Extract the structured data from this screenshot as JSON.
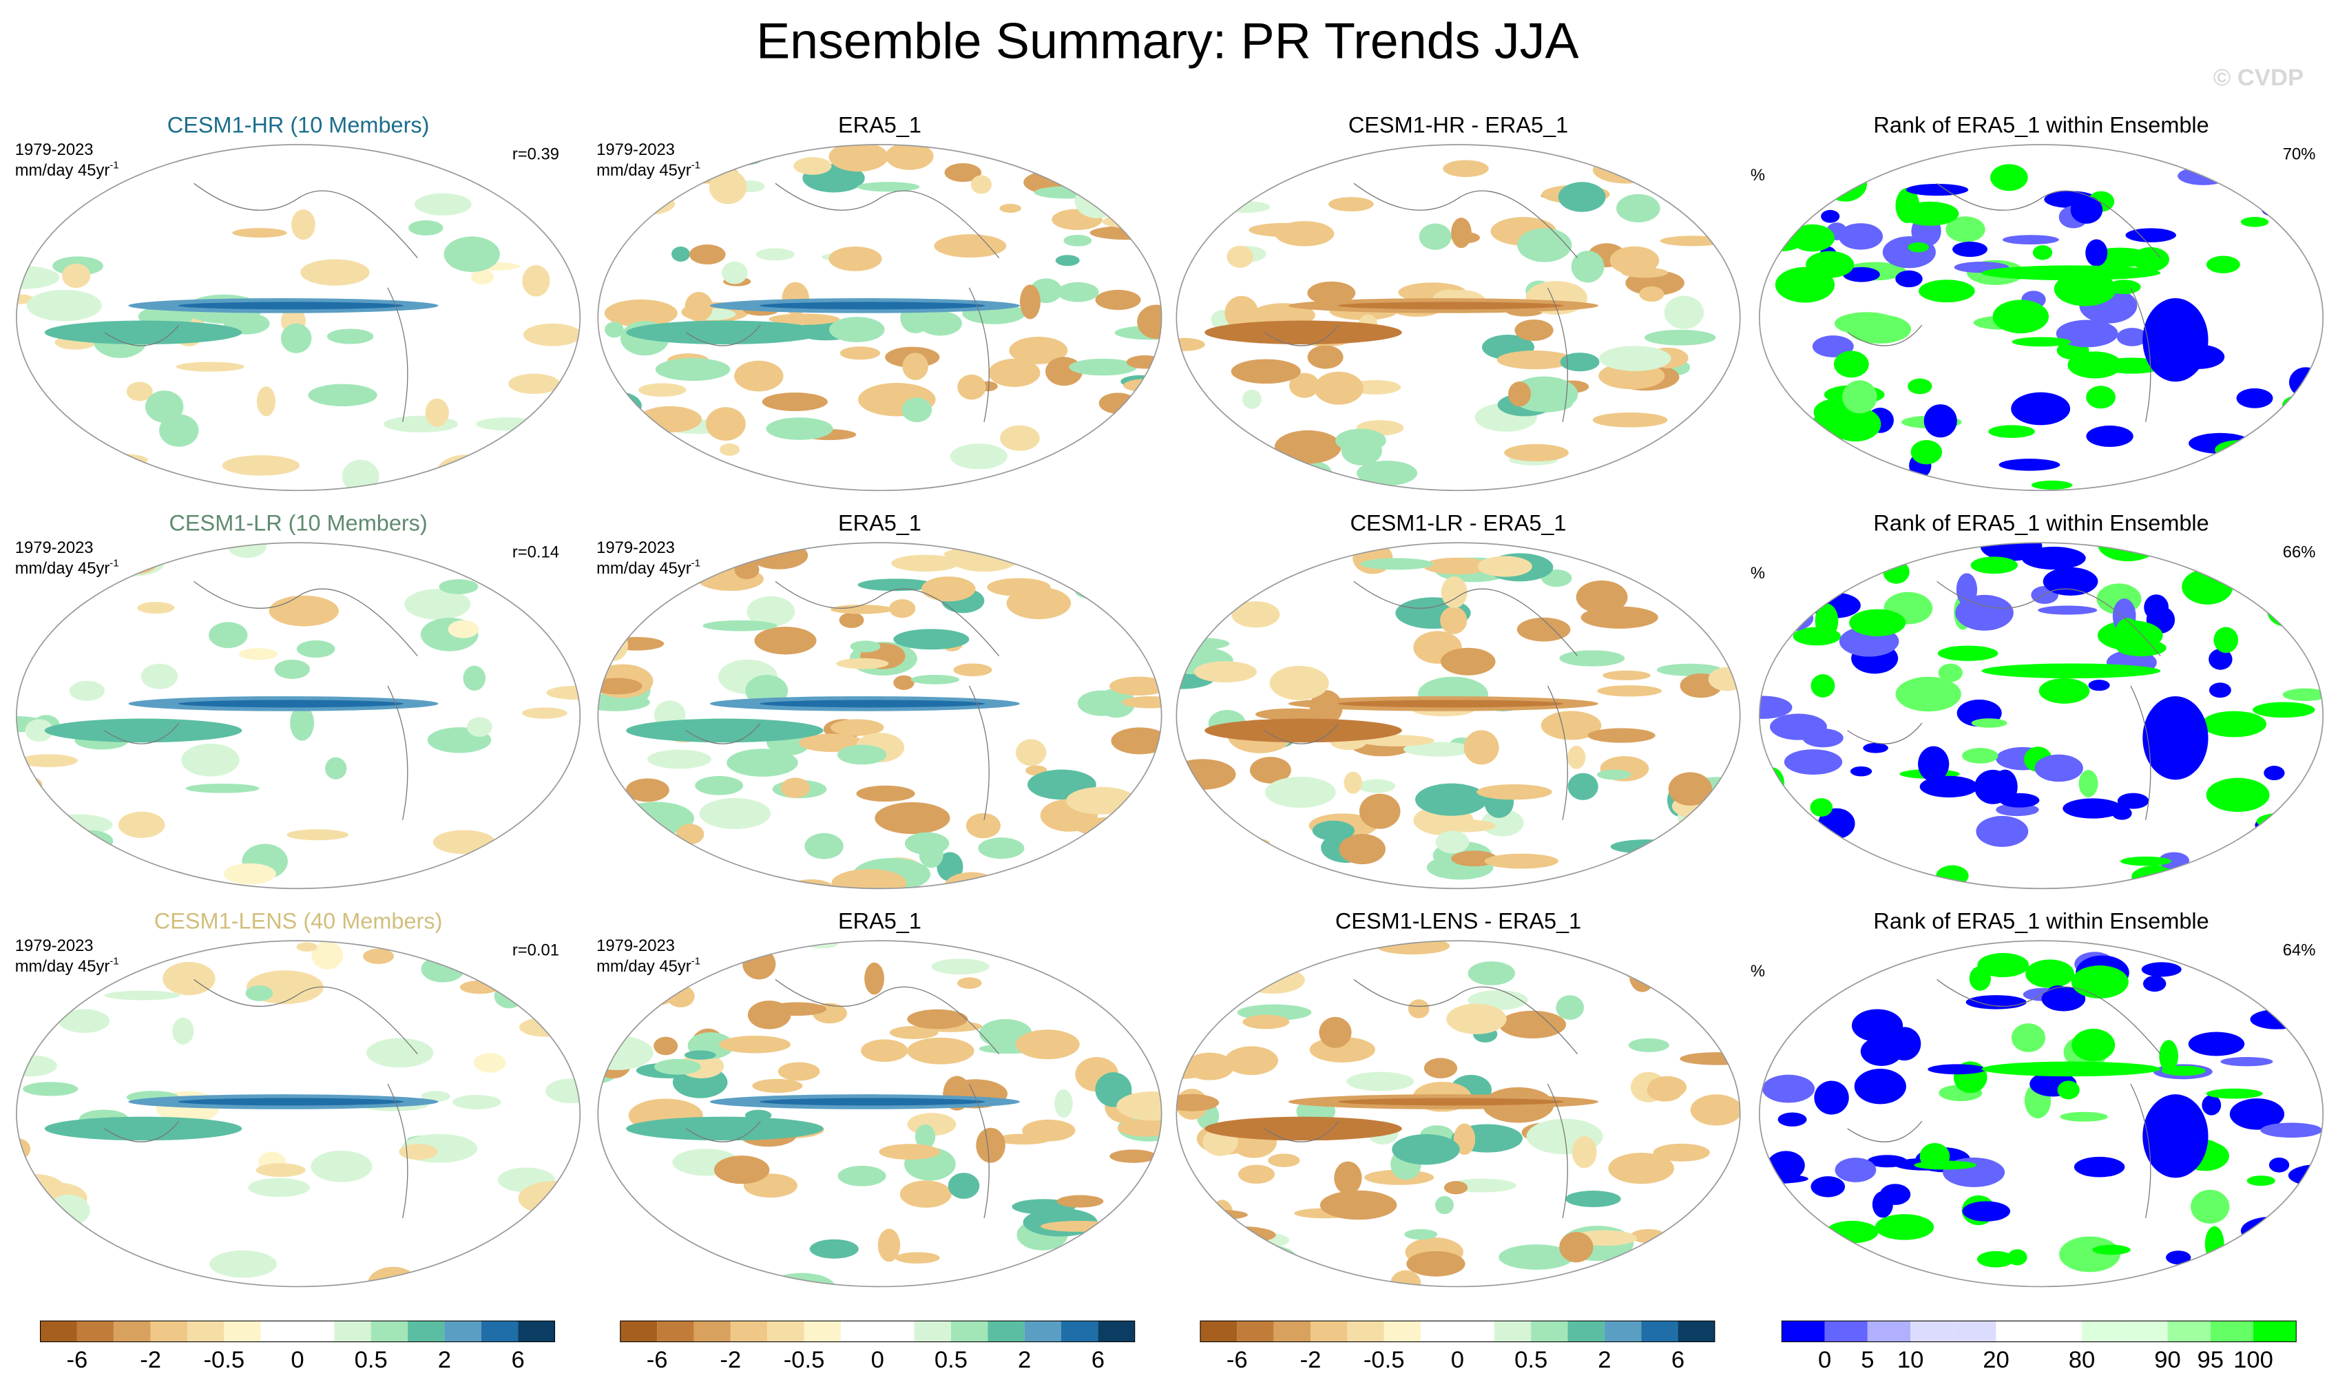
{
  "title": "Ensemble Summary: PR Trends JJA",
  "watermark": "© CVDP",
  "rows": [
    [
      {
        "title": "CESM1-HR (10 Members)",
        "title_color": "#1b6d8c",
        "period": "1979-2023",
        "units": "mm/day 45yr",
        "units_exp": "-1",
        "stat": "r=0.39"
      },
      {
        "title": "ERA5_1",
        "period": "1979-2023",
        "units": "mm/day 45yr",
        "units_exp": "-1"
      },
      {
        "title": "CESM1-HR - ERA5_1"
      },
      {
        "title": "Rank of ERA5_1 within Ensemble",
        "units": "%",
        "stat": "70%"
      }
    ],
    [
      {
        "title": "CESM1-LR (10 Members)",
        "title_color": "#5f8a6f",
        "period": "1979-2023",
        "units": "mm/day 45yr",
        "units_exp": "-1",
        "stat": "r=0.14"
      },
      {
        "title": "ERA5_1",
        "period": "1979-2023",
        "units": "mm/day 45yr",
        "units_exp": "-1"
      },
      {
        "title": "CESM1-LR - ERA5_1"
      },
      {
        "title": "Rank of ERA5_1 within Ensemble",
        "units": "%",
        "stat": "66%"
      }
    ],
    [
      {
        "title": "CESM1-LENS (40 Members)",
        "title_color": "#d2be7c",
        "period": "1979-2023",
        "units": "mm/day 45yr",
        "units_exp": "-1",
        "stat": "r=0.01"
      },
      {
        "title": "ERA5_1",
        "period": "1979-2023",
        "units": "mm/day 45yr",
        "units_exp": "-1"
      },
      {
        "title": "CESM1-LENS - ERA5_1"
      },
      {
        "title": "Rank of ERA5_1 within Ensemble",
        "units": "%",
        "stat": "64%"
      }
    ]
  ],
  "colorbars": [
    {
      "colors": [
        "#a65f1f",
        "#c27c3a",
        "#d9a15e",
        "#efc887",
        "#f5dea6",
        "#fdf4c9",
        "#ffffff",
        "#ffffff",
        "#d6f5d6",
        "#a2e6b8",
        "#5bbea2",
        "#5a9ec4",
        "#1f6ea8",
        "#0b3d62"
      ],
      "labels": [
        -6,
        -2,
        -0.5,
        0,
        0.5,
        2,
        6
      ]
    },
    {
      "colors": [
        "#a65f1f",
        "#c27c3a",
        "#d9a15e",
        "#efc887",
        "#f5dea6",
        "#fdf4c9",
        "#ffffff",
        "#ffffff",
        "#d6f5d6",
        "#a2e6b8",
        "#5bbea2",
        "#5a9ec4",
        "#1f6ea8",
        "#0b3d62"
      ],
      "labels": [
        -6,
        -2,
        -0.5,
        0,
        0.5,
        2,
        6
      ]
    },
    {
      "colors": [
        "#a65f1f",
        "#c27c3a",
        "#d9a15e",
        "#efc887",
        "#f5dea6",
        "#fdf4c9",
        "#ffffff",
        "#ffffff",
        "#d6f5d6",
        "#a2e6b8",
        "#5bbea2",
        "#5a9ec4",
        "#1f6ea8",
        "#0b3d62"
      ],
      "labels": [
        -6,
        -2,
        -0.5,
        0,
        0.5,
        2,
        6
      ]
    },
    {
      "colors": [
        "#0000ff",
        "#6464ff",
        "#b0b0ff",
        "#dcdcff",
        "#dcdcff",
        "#ffffff",
        "#ffffff",
        "#dcffdc",
        "#dcffdc",
        "#a0ffa0",
        "#64ff64",
        "#00ff00"
      ],
      "labels": [
        0,
        5,
        10,
        20,
        80,
        90,
        95,
        100
      ]
    }
  ]
}
